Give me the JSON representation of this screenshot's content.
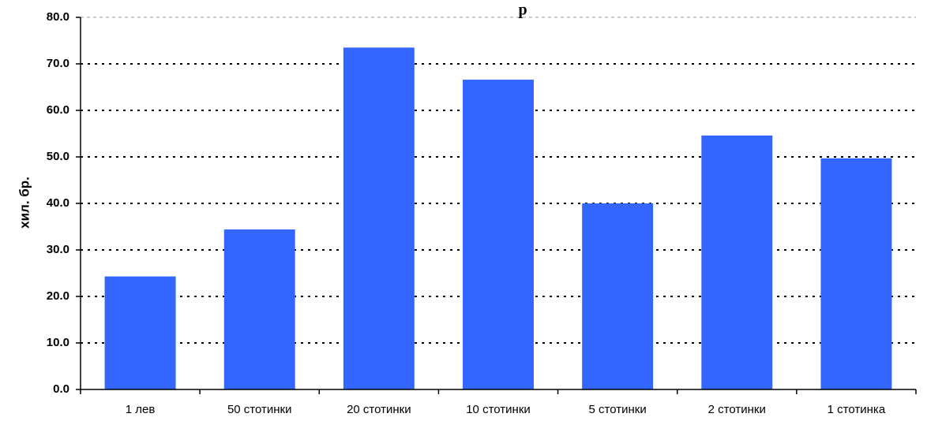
{
  "chart_data": {
    "type": "bar",
    "title": "р",
    "xlabel": "",
    "ylabel": "хил. бр.",
    "categories": [
      "1 лев",
      "50 стотинки",
      "20 стотинки",
      "10 стотинки",
      "5 стотинки",
      "2 стотинки",
      "1 стотинка"
    ],
    "values": [
      24.3,
      34.4,
      73.5,
      66.6,
      40.0,
      54.6,
      49.7
    ],
    "ylim": [
      0,
      80
    ],
    "yticks": [
      "0.0",
      "10.0",
      "20.0",
      "30.0",
      "40.0",
      "50.0",
      "60.0",
      "70.0",
      "80.0"
    ],
    "grid": true,
    "legend": "none",
    "bar_color": "#3366ff"
  }
}
